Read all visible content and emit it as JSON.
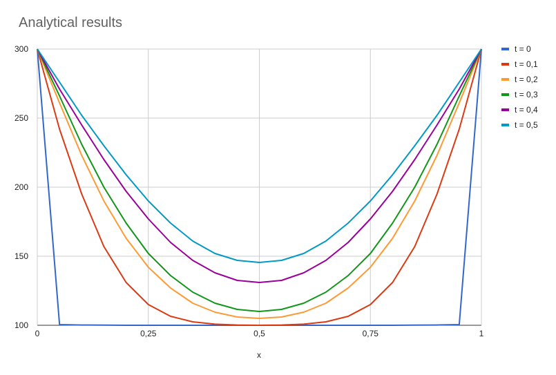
{
  "chart_data": {
    "type": "line",
    "title": "Analytical results",
    "xlabel": "x",
    "ylabel": "",
    "xlim": [
      0,
      1
    ],
    "ylim": [
      100,
      300
    ],
    "x_ticks": [
      {
        "value": 0,
        "label": "0"
      },
      {
        "value": 0.25,
        "label": "0,25"
      },
      {
        "value": 0.5,
        "label": "0,5"
      },
      {
        "value": 0.75,
        "label": "0,75"
      },
      {
        "value": 1,
        "label": "1"
      }
    ],
    "y_ticks": [
      {
        "value": 100,
        "label": "100"
      },
      {
        "value": 150,
        "label": "150"
      },
      {
        "value": 200,
        "label": "200"
      },
      {
        "value": 250,
        "label": "250"
      },
      {
        "value": 300,
        "label": "300"
      }
    ],
    "grid": true,
    "legend_position": "right",
    "x": [
      0,
      0.05,
      0.1,
      0.15,
      0.2,
      0.25,
      0.3,
      0.35,
      0.4,
      0.45,
      0.5,
      0.55,
      0.6,
      0.65,
      0.7,
      0.75,
      0.8,
      0.85,
      0.9,
      0.95,
      1
    ],
    "series": [
      {
        "name": "t = 0",
        "color": "#3366cc",
        "values": [
          300,
          100.5,
          100.2,
          100.1,
          100,
          100,
          100,
          100,
          100,
          100,
          100,
          100,
          100,
          100,
          100,
          100,
          100,
          100.1,
          100.2,
          100.5,
          300
        ]
      },
      {
        "name": "t = 0,1",
        "color": "#dc3912",
        "values": [
          300,
          242,
          195,
          157,
          131,
          115,
          106.5,
          102.5,
          100.8,
          100.2,
          100,
          100.2,
          100.8,
          102.5,
          106.5,
          115,
          131,
          157,
          195,
          242,
          300
        ]
      },
      {
        "name": "t = 0,2",
        "color": "#ff9933",
        "values": [
          300,
          261,
          223,
          190,
          163,
          142,
          127,
          116,
          109.5,
          106,
          105,
          106,
          109.5,
          116,
          127,
          142,
          163,
          190,
          223,
          261,
          300
        ]
      },
      {
        "name": "t = 0,3",
        "color": "#109618",
        "values": [
          300,
          266,
          231,
          200,
          174,
          152,
          136,
          124,
          116,
          111.5,
          110,
          111.5,
          116,
          124,
          136,
          152,
          174,
          200,
          231,
          266,
          300
        ]
      },
      {
        "name": "t = 0,4",
        "color": "#990099",
        "values": [
          300,
          271,
          245,
          220,
          197,
          177,
          160,
          147,
          138,
          132.5,
          131,
          132.5,
          138,
          147,
          160,
          177,
          197,
          220,
          245,
          271,
          300
        ]
      },
      {
        "name": "t = 0,5",
        "color": "#0099c6",
        "values": [
          300,
          276,
          252,
          230,
          209,
          190,
          174,
          161,
          152,
          147,
          145.5,
          147,
          152,
          161,
          174,
          190,
          209,
          230,
          252,
          276,
          300
        ]
      }
    ]
  }
}
